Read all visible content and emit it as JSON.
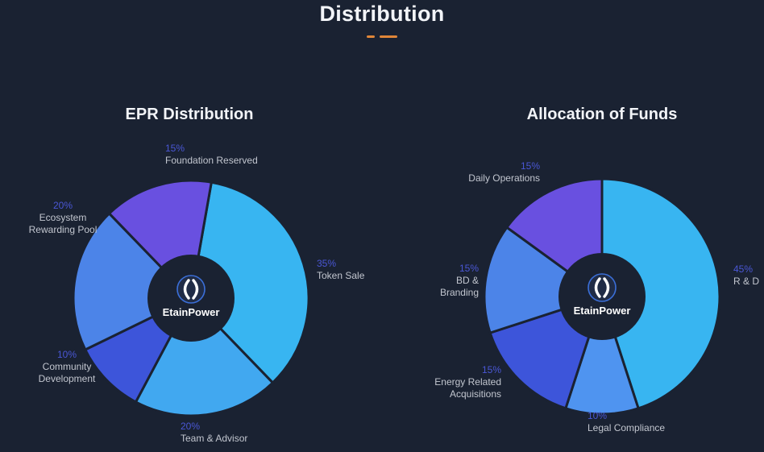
{
  "page": {
    "title": "Distribution"
  },
  "theme": {
    "background": "#1a2232",
    "title_color": "#f2f4f8",
    "accent_dash": "#e08639",
    "pct_color": "#4a57d5",
    "label_color": "#c2c6cf",
    "logo_ring": "#3b6fd8",
    "logo_fill": "#202c46",
    "logo_mark": "#ffffff"
  },
  "chart_data": [
    {
      "type": "pie",
      "title": "EPR Distribution",
      "center_label": "EtainPower",
      "start_angle": 10,
      "legend_position": "around",
      "slices": [
        {
          "label": "Token Sale",
          "value": 35,
          "pct": "35%",
          "color": "#38b5f1"
        },
        {
          "label": "Team & Advisor",
          "value": 20,
          "pct": "20%",
          "color": "#41a8f0"
        },
        {
          "label": "Community Development",
          "value": 10,
          "pct": "10%",
          "color": "#3d55da"
        },
        {
          "label": "Ecosystem Rewarding Pool",
          "value": 20,
          "pct": "20%",
          "color": "#4c84e8"
        },
        {
          "label": "Foundation Reserved",
          "value": 15,
          "pct": "15%",
          "color": "#6950e0"
        }
      ]
    },
    {
      "type": "pie",
      "title": "Allocation of Funds",
      "center_label": "EtainPower",
      "start_angle": 0,
      "legend_position": "around",
      "slices": [
        {
          "label": "R & D",
          "value": 45,
          "pct": "45%",
          "color": "#38b5f1"
        },
        {
          "label": "Legal Compliance",
          "value": 10,
          "pct": "10%",
          "color": "#4f94f0"
        },
        {
          "label": "Energy Related Acquisitions",
          "value": 15,
          "pct": "15%",
          "color": "#3d55da"
        },
        {
          "label": "BD & Branding",
          "value": 15,
          "pct": "15%",
          "color": "#4c84e8"
        },
        {
          "label": "Daily Operations",
          "value": 15,
          "pct": "15%",
          "color": "#6950e0"
        }
      ]
    }
  ]
}
